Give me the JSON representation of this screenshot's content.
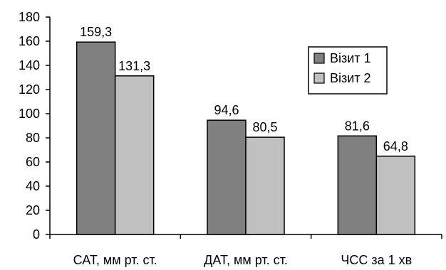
{
  "chart_data": {
    "type": "bar",
    "title": "",
    "xlabel": "",
    "ylabel": "",
    "categories": [
      "САТ, мм рт. ст.",
      "ДАТ, мм рт. ст.",
      "ЧСС за 1 хв"
    ],
    "series": [
      {
        "name": "Візит 1",
        "color": "#808080",
        "values": [
          159.3,
          94.6,
          81.6
        ],
        "labels": [
          "159,3",
          "94,6",
          "81,6"
        ]
      },
      {
        "name": "Візит 2",
        "color": "#c0c0c0",
        "values": [
          131.3,
          80.5,
          64.8
        ],
        "labels": [
          "131,3",
          "80,5",
          "64,8"
        ]
      }
    ],
    "ylim": [
      0,
      180
    ],
    "yticks": [
      0,
      20,
      40,
      60,
      80,
      100,
      120,
      140,
      160,
      180
    ],
    "grid": false,
    "legend_position": "right"
  }
}
